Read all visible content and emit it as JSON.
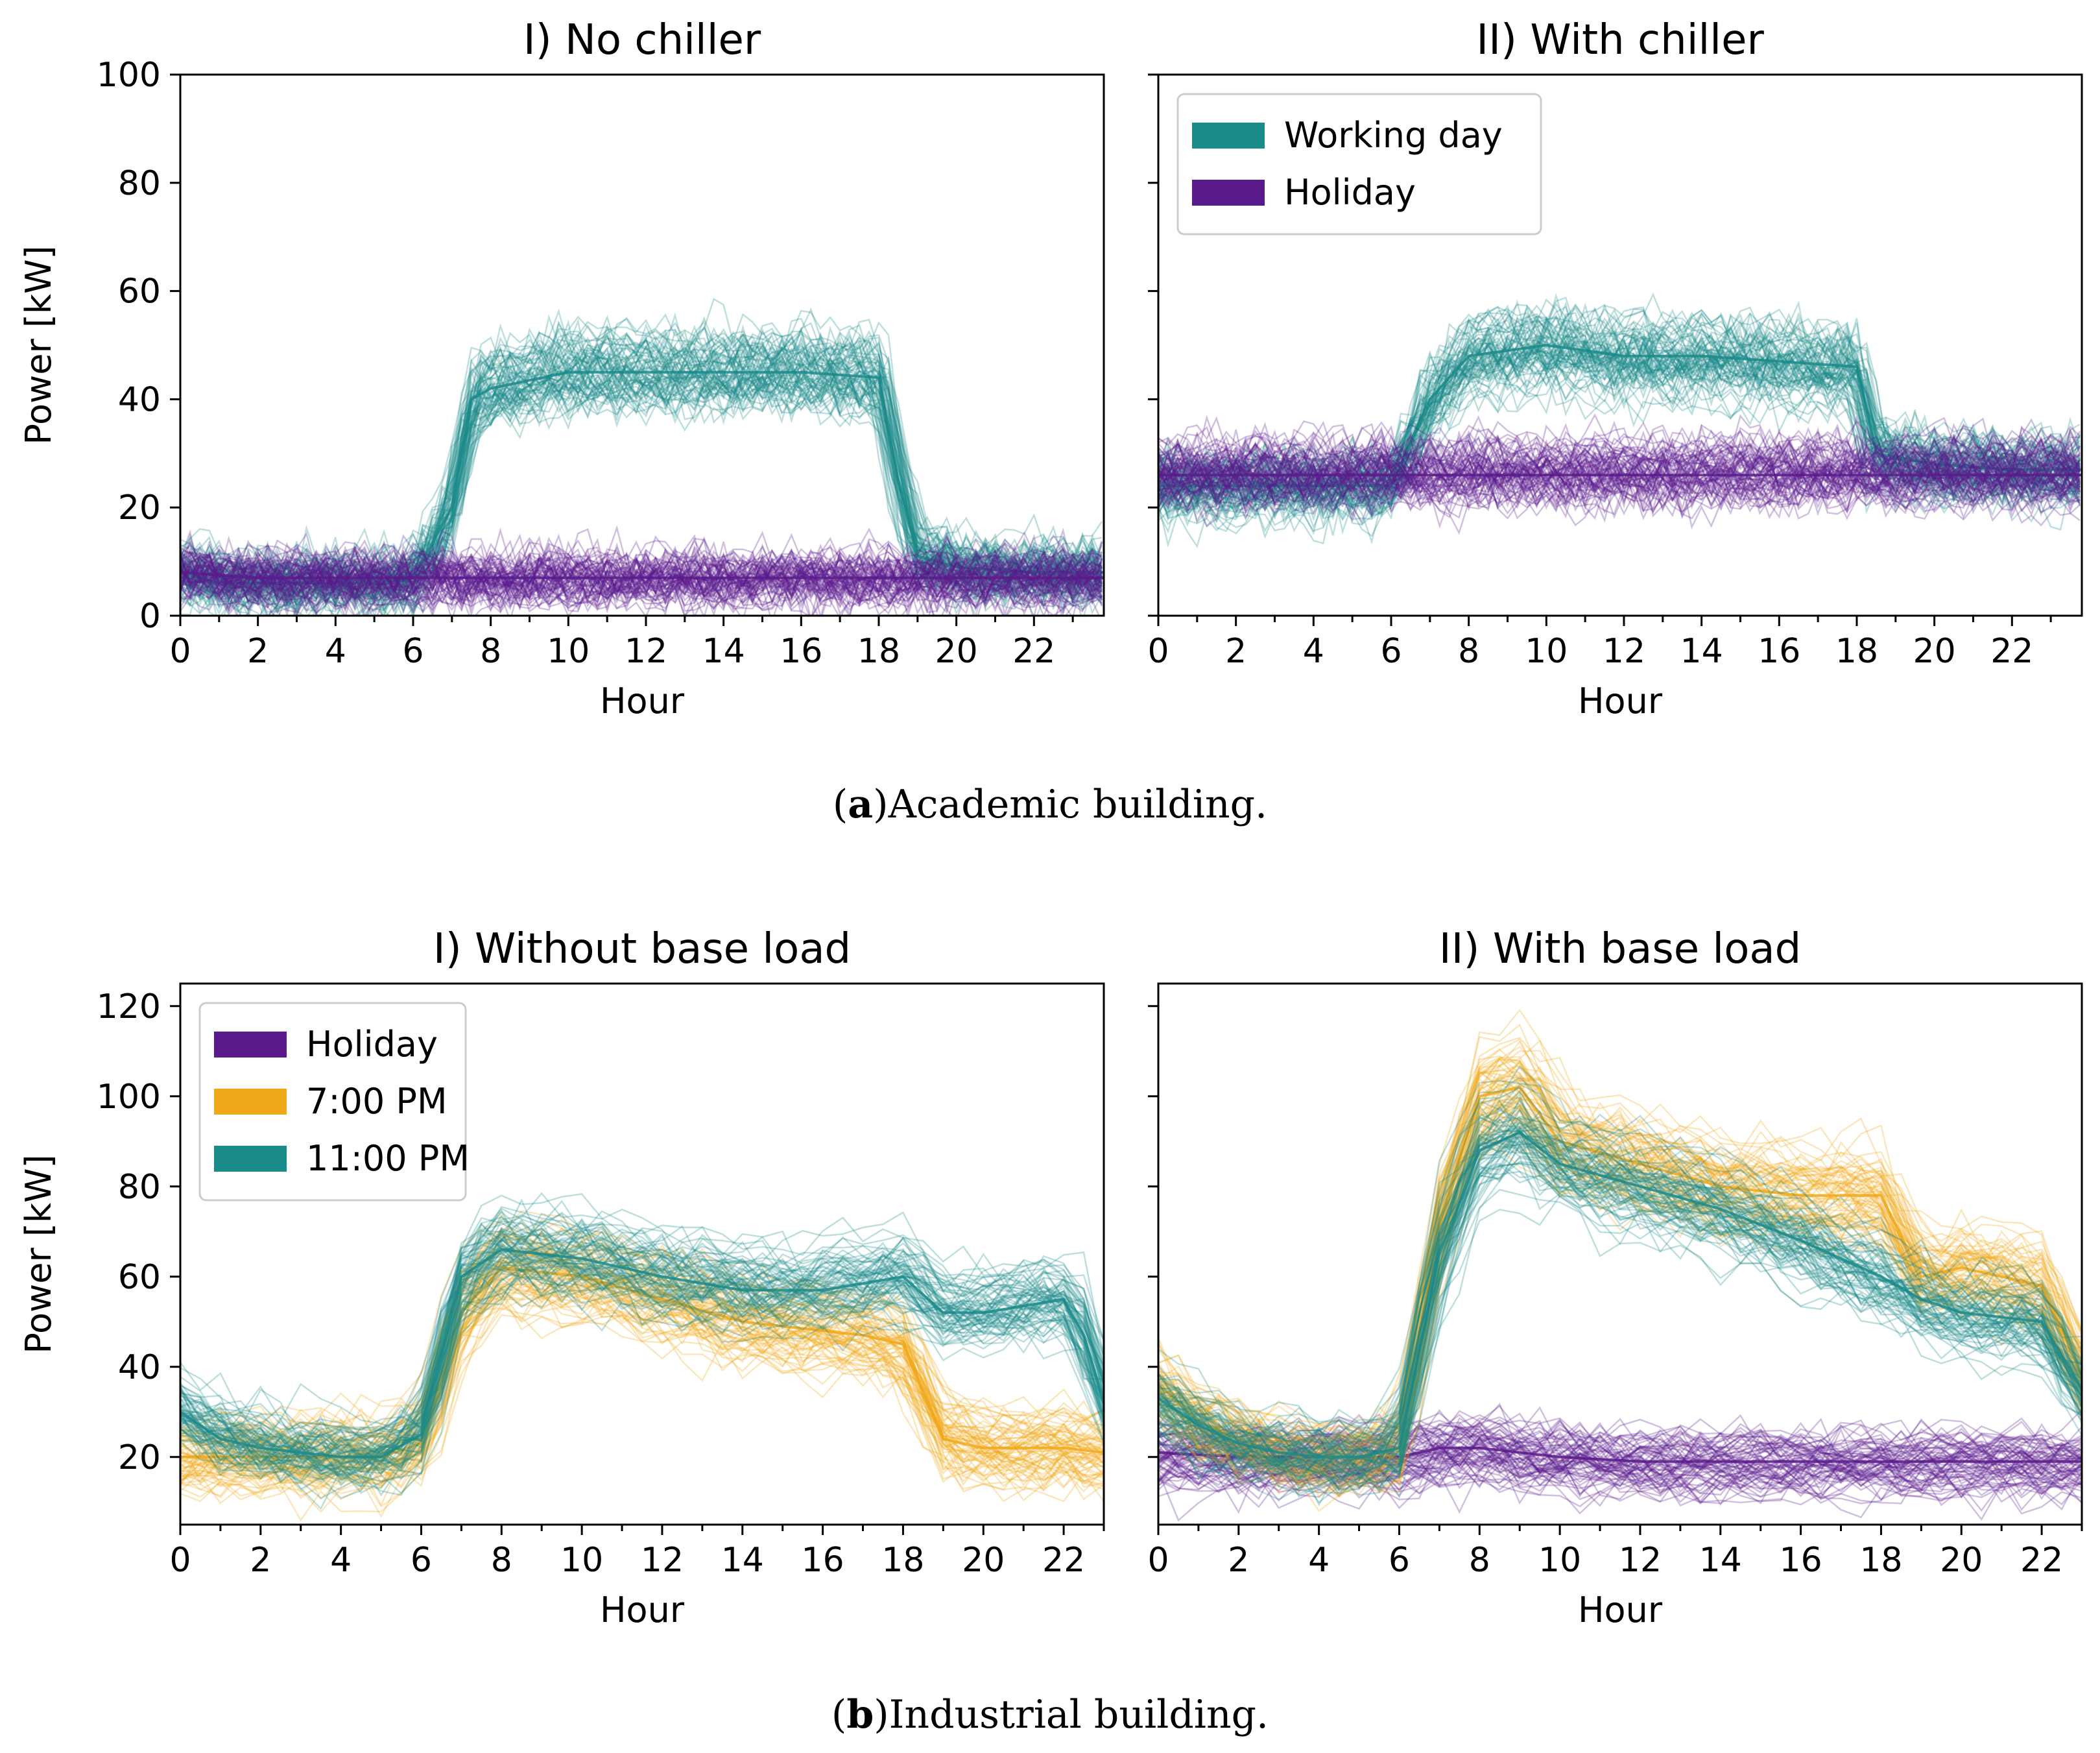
{
  "captions": {
    "a_letter": "a",
    "a_text": "Academic building.",
    "b_letter": "b",
    "b_text": "Industrial building."
  },
  "colors": {
    "working": "#1a8a8a",
    "holiday": "#5a1a8c",
    "pm7": "#f0a818",
    "pm11": "#1a8a8a"
  },
  "chart_data": [
    {
      "type": "line",
      "panel": "a1",
      "title": "I) No chiller",
      "xlabel": "Hour",
      "ylabel": "Power [kW]",
      "xlim": [
        0,
        23.8
      ],
      "ylim": [
        0,
        100
      ],
      "xticks": [
        "0",
        "2",
        "4",
        "6",
        "8",
        "10",
        "12",
        "14",
        "16",
        "18",
        "20",
        "22"
      ],
      "yticks": [
        "0",
        "20",
        "40",
        "60",
        "80",
        "100"
      ],
      "legend": null,
      "series": [
        {
          "name": "Working day",
          "color_key": "working",
          "x": [
            0,
            1,
            2,
            3,
            4,
            5,
            6,
            7,
            7.5,
            8,
            10,
            12,
            14,
            16,
            18,
            18.5,
            19,
            20,
            22,
            23.8
          ],
          "y": [
            8,
            6,
            6,
            6,
            6,
            6,
            7,
            20,
            40,
            42,
            45,
            45,
            45,
            45,
            44,
            25,
            11,
            9,
            8,
            8
          ]
        },
        {
          "name": "Holiday",
          "color_key": "holiday",
          "x": [
            0,
            2,
            4,
            6,
            8,
            10,
            12,
            14,
            16,
            18,
            20,
            22,
            23.8
          ],
          "y": [
            8,
            7,
            7,
            7,
            7,
            7,
            7,
            7,
            7,
            7,
            7,
            7,
            7
          ]
        }
      ]
    },
    {
      "type": "line",
      "panel": "a2",
      "title": "II) With chiller",
      "xlabel": "Hour",
      "ylabel": "",
      "xlim": [
        0,
        23.8
      ],
      "ylim": [
        0,
        100
      ],
      "xticks": [
        "0",
        "2",
        "4",
        "6",
        "8",
        "10",
        "12",
        "14",
        "16",
        "18",
        "20",
        "22"
      ],
      "yticks": [],
      "legend": {
        "location": "upper left",
        "entries": [
          "Working day",
          "Holiday"
        ]
      },
      "series": [
        {
          "name": "Working day",
          "color_key": "working",
          "x": [
            0,
            2,
            4,
            6,
            7,
            8,
            10,
            12,
            14,
            16,
            18,
            18.5,
            20,
            22,
            23.8
          ],
          "y": [
            24,
            24,
            24,
            24,
            40,
            48,
            50,
            48,
            48,
            47,
            46,
            30,
            28,
            27,
            27
          ]
        },
        {
          "name": "Holiday",
          "color_key": "holiday",
          "x": [
            0,
            2,
            4,
            6,
            8,
            10,
            12,
            14,
            16,
            18,
            20,
            22,
            23.8
          ],
          "y": [
            26,
            26,
            26,
            26,
            26,
            26,
            26,
            26,
            26,
            26,
            26,
            26,
            26
          ]
        }
      ]
    },
    {
      "type": "line",
      "panel": "b1",
      "title": "I) Without base load",
      "xlabel": "Hour",
      "ylabel": "Power [kW]",
      "xlim": [
        0,
        23
      ],
      "ylim": [
        5,
        125
      ],
      "xticks": [
        "0",
        "2",
        "4",
        "6",
        "8",
        "10",
        "12",
        "14",
        "16",
        "18",
        "20",
        "22"
      ],
      "yticks": [
        "20",
        "40",
        "60",
        "80",
        "100",
        "120"
      ],
      "legend": {
        "location": "upper left",
        "entries": [
          "Holiday",
          "7:00 PM",
          "11:00 PM"
        ]
      },
      "series": [
        {
          "name": "Holiday",
          "color_key": "holiday",
          "x": [],
          "y": []
        },
        {
          "name": "7:00 PM",
          "color_key": "pm7",
          "x": [
            0,
            1,
            2,
            3,
            4,
            5,
            6,
            7,
            8,
            10,
            12,
            14,
            16,
            17,
            18,
            19,
            20,
            22,
            23
          ],
          "y": [
            20,
            20,
            20,
            20,
            20,
            20,
            23,
            52,
            62,
            60,
            55,
            50,
            48,
            47,
            45,
            24,
            22,
            22,
            21
          ]
        },
        {
          "name": "11:00 PM",
          "color_key": "pm11",
          "x": [
            0,
            1,
            2,
            3,
            4,
            5,
            6,
            7,
            8,
            10,
            12,
            14,
            16,
            18,
            19,
            20,
            22,
            22.5,
            23
          ],
          "y": [
            30,
            24,
            22,
            21,
            20,
            20,
            25,
            60,
            66,
            64,
            60,
            57,
            57,
            60,
            52,
            52,
            55,
            47,
            32
          ]
        }
      ]
    },
    {
      "type": "line",
      "panel": "b2",
      "title": "II) With base load",
      "xlabel": "Hour",
      "ylabel": "",
      "xlim": [
        0,
        23
      ],
      "ylim": [
        5,
        125
      ],
      "xticks": [
        "0",
        "2",
        "4",
        "6",
        "8",
        "10",
        "12",
        "14",
        "16",
        "18",
        "20",
        "22"
      ],
      "yticks": [],
      "legend": null,
      "series": [
        {
          "name": "Holiday",
          "color_key": "holiday",
          "x": [
            0,
            2,
            4,
            6,
            7,
            8,
            10,
            12,
            14,
            16,
            18,
            20,
            22,
            23
          ],
          "y": [
            21,
            20,
            20,
            20,
            22,
            22,
            20,
            19,
            19,
            19,
            19,
            19,
            19,
            19
          ]
        },
        {
          "name": "7:00 PM",
          "color_key": "pm7",
          "x": [
            0,
            1,
            2,
            3,
            4,
            5,
            6,
            7,
            8,
            9,
            10,
            12,
            14,
            16,
            18,
            19,
            20,
            22,
            23
          ],
          "y": [
            36,
            28,
            24,
            21,
            20,
            20,
            22,
            72,
            100,
            102,
            90,
            85,
            80,
            78,
            78,
            60,
            62,
            58,
            38
          ]
        },
        {
          "name": "11:00 PM",
          "color_key": "pm11",
          "x": [
            0,
            1,
            2,
            3,
            4,
            5,
            6,
            7,
            8,
            9,
            10,
            12,
            14,
            16,
            18,
            19,
            20,
            22,
            23
          ],
          "y": [
            33,
            27,
            23,
            21,
            20,
            20,
            22,
            65,
            88,
            92,
            85,
            80,
            75,
            68,
            60,
            55,
            52,
            50,
            35
          ]
        }
      ]
    }
  ]
}
